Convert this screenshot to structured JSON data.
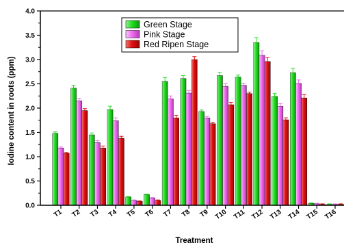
{
  "chart_data": {
    "type": "bar",
    "xlabel": "Treatment",
    "ylabel": "Iodine content in roots (ppm)",
    "ylim": [
      0,
      4.0
    ],
    "yticks": [
      "0.0",
      "0.5",
      "1.0",
      "1.5",
      "2.0",
      "2.5",
      "3.0",
      "3.5",
      "4.0"
    ],
    "grid": false,
    "legend_position": "top-center",
    "error_bars": true,
    "categories": [
      "T1",
      "T2",
      "T3",
      "T4",
      "T5",
      "T6",
      "T7",
      "T8",
      "T9",
      "T10",
      "T11",
      "T12",
      "T13",
      "T14",
      "T15",
      "T16"
    ],
    "series": [
      {
        "name": "Green Stage",
        "color": "#22dd22",
        "values": [
          1.48,
          2.41,
          1.45,
          1.97,
          0.17,
          0.22,
          2.55,
          2.61,
          1.93,
          2.67,
          2.64,
          3.35,
          2.24,
          2.73,
          0.04,
          0.02
        ],
        "errors": [
          0.03,
          0.06,
          0.04,
          0.07,
          0.01,
          0.01,
          0.08,
          0.06,
          0.03,
          0.07,
          0.04,
          0.1,
          0.06,
          0.09,
          0.01,
          0.01
        ]
      },
      {
        "name": "Pink Stage",
        "color": "#f06cf0",
        "values": [
          1.18,
          2.15,
          1.29,
          1.74,
          0.1,
          0.15,
          2.19,
          2.31,
          1.8,
          2.45,
          2.47,
          3.09,
          2.04,
          2.51,
          0.03,
          0.02
        ],
        "errors": [
          0.02,
          0.05,
          0.04,
          0.06,
          0.01,
          0.01,
          0.06,
          0.05,
          0.03,
          0.05,
          0.04,
          0.09,
          0.05,
          0.07,
          0.01,
          0.01
        ]
      },
      {
        "name": "Red Ripen Stage",
        "color": "#e01010",
        "values": [
          1.07,
          1.95,
          1.18,
          1.38,
          0.08,
          0.1,
          1.8,
          3.0,
          1.68,
          2.07,
          2.3,
          2.96,
          1.76,
          2.21,
          0.02,
          0.02
        ],
        "errors": [
          0.02,
          0.04,
          0.04,
          0.04,
          0.01,
          0.01,
          0.05,
          0.06,
          0.03,
          0.05,
          0.03,
          0.08,
          0.04,
          0.07,
          0.01,
          0.01
        ]
      }
    ]
  }
}
